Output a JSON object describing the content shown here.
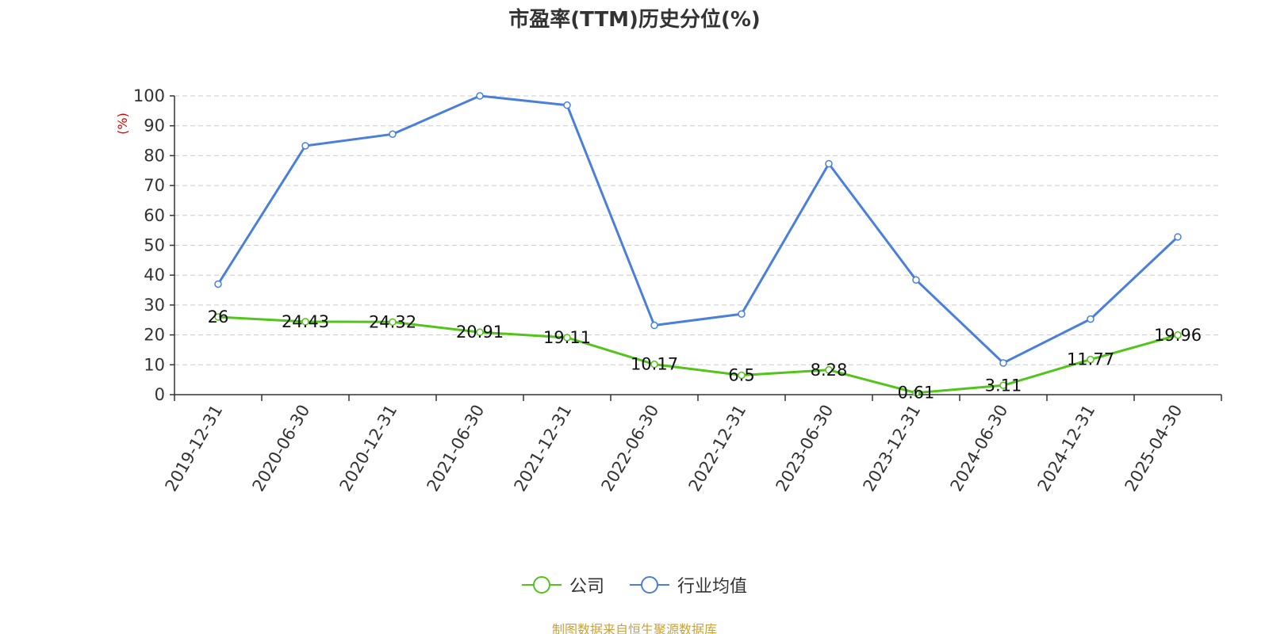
{
  "chart_data": {
    "type": "line",
    "title": "市盈率(TTM)历史分位(%)",
    "ylabel": "(%)",
    "xlabel": "",
    "ylim": [
      0,
      100
    ],
    "yticks": [
      0,
      10,
      20,
      30,
      40,
      50,
      60,
      70,
      80,
      90,
      100
    ],
    "categories": [
      "2019-12-31",
      "2020-06-30",
      "2020-12-31",
      "2021-06-30",
      "2021-12-31",
      "2022-06-30",
      "2022-12-31",
      "2023-06-30",
      "2023-12-31",
      "2024-06-30",
      "2024-12-31",
      "2025-04-30"
    ],
    "grid": true,
    "legend_position": "bottom",
    "series": [
      {
        "name": "公司",
        "color": "#52c41a",
        "show_labels": true,
        "values": [
          26,
          24.43,
          24.32,
          20.91,
          19.11,
          10.17,
          6.5,
          8.28,
          0.61,
          3.11,
          11.77,
          19.96
        ],
        "labels": [
          "26",
          "24.43",
          "24.32",
          "20.91",
          "19.11",
          "10.17",
          "6.5",
          "8.28",
          "0.61",
          "3.11",
          "11.77",
          "19.96"
        ]
      },
      {
        "name": "行业均值",
        "color": "#4a7fdc",
        "show_labels": false,
        "values": [
          37,
          83.3,
          87.2,
          100,
          96.9,
          23.2,
          27,
          77.3,
          38.4,
          10.6,
          25.3,
          52.8
        ]
      }
    ]
  },
  "footer": {
    "source": "制图数据来自恒生聚源数据库"
  },
  "colors": {
    "grid": "#cccccc",
    "axis": "#333333",
    "ylabel": "#e00000",
    "source": "#c8a23c"
  }
}
